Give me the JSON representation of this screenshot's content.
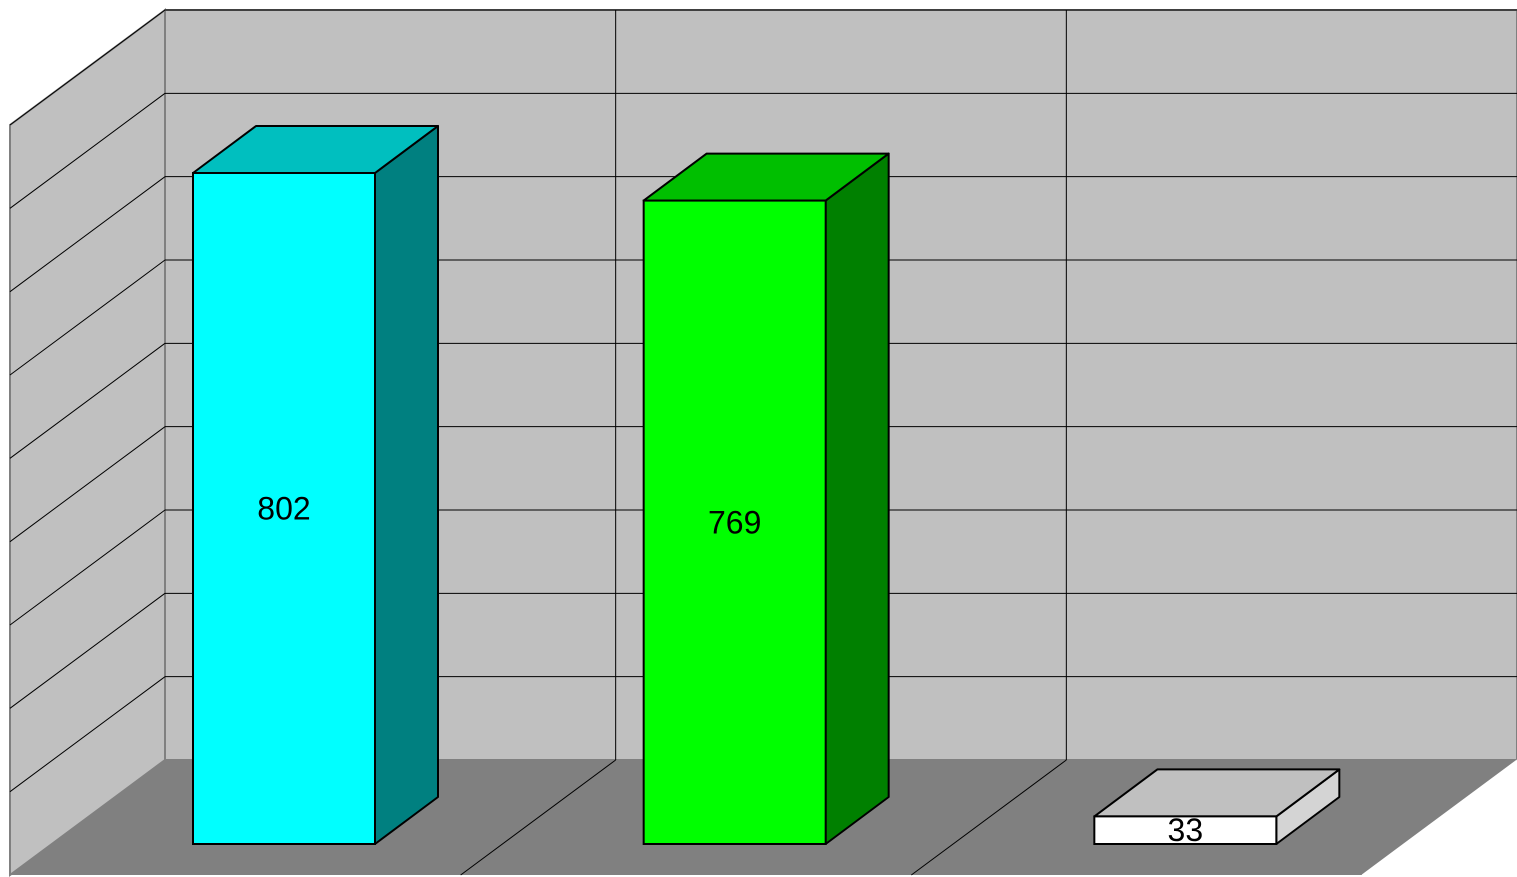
{
  "chart_data": {
    "type": "bar",
    "three_d": true,
    "categories": [
      "",
      "",
      ""
    ],
    "values": [
      802,
      769,
      33
    ],
    "data_labels": [
      "802",
      "769",
      "33"
    ],
    "ylim": [
      0,
      900
    ],
    "grid": true,
    "legend": "none",
    "title": "",
    "xlabel": "",
    "ylabel": ""
  },
  "colors": {
    "bars": [
      {
        "front": "#00FFFF",
        "top": "#00BFBF",
        "side": "#008080"
      },
      {
        "front": "#00FF00",
        "top": "#00BF00",
        "side": "#008000"
      },
      {
        "front": "#FFFFFF",
        "top": "#C0C0C0",
        "side": "#D4D4D4"
      }
    ],
    "back_wall": "#C0C0C0",
    "side_wall": "#C0C0C0",
    "floor": "#808080",
    "gridline": "#000000"
  }
}
